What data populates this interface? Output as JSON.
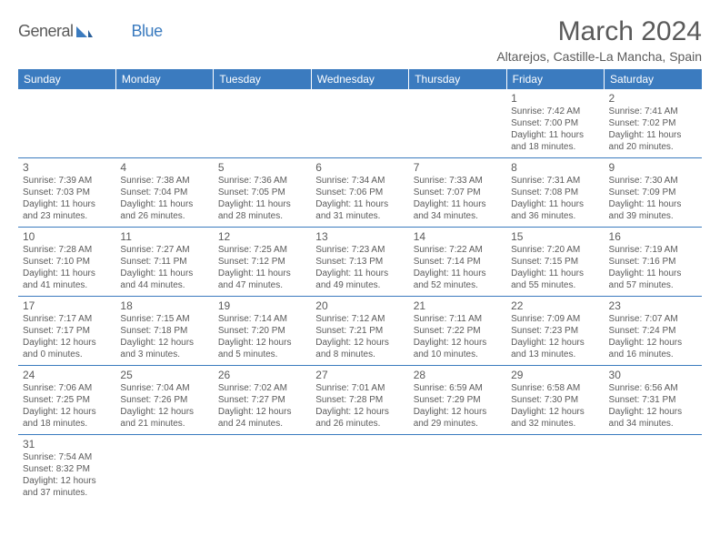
{
  "logo": {
    "textA": "General",
    "textB": "Blue"
  },
  "title": "March 2024",
  "location": "Altarejos, Castille-La Mancha, Spain",
  "colors": {
    "header_bg": "#3b7bbf",
    "header_fg": "#ffffff",
    "text": "#5a5a5a",
    "rule": "#3b7bbf"
  },
  "dayHeaders": [
    "Sunday",
    "Monday",
    "Tuesday",
    "Wednesday",
    "Thursday",
    "Friday",
    "Saturday"
  ],
  "weeks": [
    [
      null,
      null,
      null,
      null,
      null,
      {
        "n": "1",
        "sunrise": "7:42 AM",
        "sunset": "7:00 PM",
        "dayh": "11",
        "daym": "18"
      },
      {
        "n": "2",
        "sunrise": "7:41 AM",
        "sunset": "7:02 PM",
        "dayh": "11",
        "daym": "20"
      }
    ],
    [
      {
        "n": "3",
        "sunrise": "7:39 AM",
        "sunset": "7:03 PM",
        "dayh": "11",
        "daym": "23"
      },
      {
        "n": "4",
        "sunrise": "7:38 AM",
        "sunset": "7:04 PM",
        "dayh": "11",
        "daym": "26"
      },
      {
        "n": "5",
        "sunrise": "7:36 AM",
        "sunset": "7:05 PM",
        "dayh": "11",
        "daym": "28"
      },
      {
        "n": "6",
        "sunrise": "7:34 AM",
        "sunset": "7:06 PM",
        "dayh": "11",
        "daym": "31"
      },
      {
        "n": "7",
        "sunrise": "7:33 AM",
        "sunset": "7:07 PM",
        "dayh": "11",
        "daym": "34"
      },
      {
        "n": "8",
        "sunrise": "7:31 AM",
        "sunset": "7:08 PM",
        "dayh": "11",
        "daym": "36"
      },
      {
        "n": "9",
        "sunrise": "7:30 AM",
        "sunset": "7:09 PM",
        "dayh": "11",
        "daym": "39"
      }
    ],
    [
      {
        "n": "10",
        "sunrise": "7:28 AM",
        "sunset": "7:10 PM",
        "dayh": "11",
        "daym": "41"
      },
      {
        "n": "11",
        "sunrise": "7:27 AM",
        "sunset": "7:11 PM",
        "dayh": "11",
        "daym": "44"
      },
      {
        "n": "12",
        "sunrise": "7:25 AM",
        "sunset": "7:12 PM",
        "dayh": "11",
        "daym": "47"
      },
      {
        "n": "13",
        "sunrise": "7:23 AM",
        "sunset": "7:13 PM",
        "dayh": "11",
        "daym": "49"
      },
      {
        "n": "14",
        "sunrise": "7:22 AM",
        "sunset": "7:14 PM",
        "dayh": "11",
        "daym": "52"
      },
      {
        "n": "15",
        "sunrise": "7:20 AM",
        "sunset": "7:15 PM",
        "dayh": "11",
        "daym": "55"
      },
      {
        "n": "16",
        "sunrise": "7:19 AM",
        "sunset": "7:16 PM",
        "dayh": "11",
        "daym": "57"
      }
    ],
    [
      {
        "n": "17",
        "sunrise": "7:17 AM",
        "sunset": "7:17 PM",
        "dayh": "12",
        "daym": "0"
      },
      {
        "n": "18",
        "sunrise": "7:15 AM",
        "sunset": "7:18 PM",
        "dayh": "12",
        "daym": "3"
      },
      {
        "n": "19",
        "sunrise": "7:14 AM",
        "sunset": "7:20 PM",
        "dayh": "12",
        "daym": "5"
      },
      {
        "n": "20",
        "sunrise": "7:12 AM",
        "sunset": "7:21 PM",
        "dayh": "12",
        "daym": "8"
      },
      {
        "n": "21",
        "sunrise": "7:11 AM",
        "sunset": "7:22 PM",
        "dayh": "12",
        "daym": "10"
      },
      {
        "n": "22",
        "sunrise": "7:09 AM",
        "sunset": "7:23 PM",
        "dayh": "12",
        "daym": "13"
      },
      {
        "n": "23",
        "sunrise": "7:07 AM",
        "sunset": "7:24 PM",
        "dayh": "12",
        "daym": "16"
      }
    ],
    [
      {
        "n": "24",
        "sunrise": "7:06 AM",
        "sunset": "7:25 PM",
        "dayh": "12",
        "daym": "18"
      },
      {
        "n": "25",
        "sunrise": "7:04 AM",
        "sunset": "7:26 PM",
        "dayh": "12",
        "daym": "21"
      },
      {
        "n": "26",
        "sunrise": "7:02 AM",
        "sunset": "7:27 PM",
        "dayh": "12",
        "daym": "24"
      },
      {
        "n": "27",
        "sunrise": "7:01 AM",
        "sunset": "7:28 PM",
        "dayh": "12",
        "daym": "26"
      },
      {
        "n": "28",
        "sunrise": "6:59 AM",
        "sunset": "7:29 PM",
        "dayh": "12",
        "daym": "29"
      },
      {
        "n": "29",
        "sunrise": "6:58 AM",
        "sunset": "7:30 PM",
        "dayh": "12",
        "daym": "32"
      },
      {
        "n": "30",
        "sunrise": "6:56 AM",
        "sunset": "7:31 PM",
        "dayh": "12",
        "daym": "34"
      }
    ],
    [
      {
        "n": "31",
        "sunrise": "7:54 AM",
        "sunset": "8:32 PM",
        "dayh": "12",
        "daym": "37"
      },
      null,
      null,
      null,
      null,
      null,
      null
    ]
  ]
}
